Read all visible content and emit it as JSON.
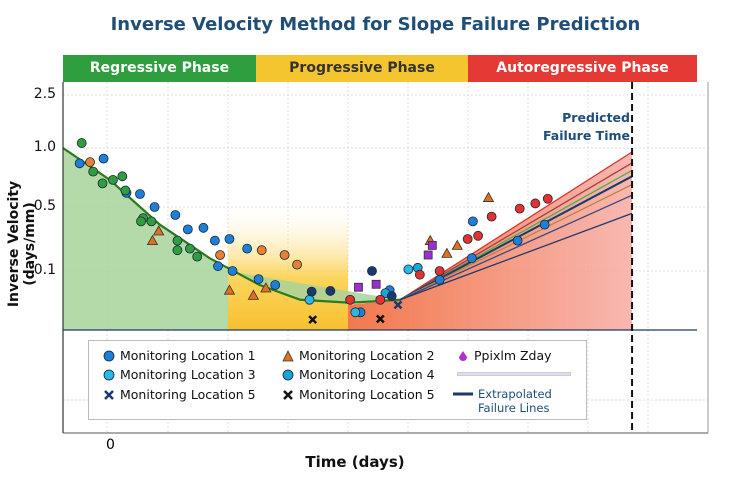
{
  "chart_data": {
    "type": "scatter",
    "title": "Inverse Velocity Method for Slope Failure Prediction",
    "xlabel": "Time (days)",
    "ylabel": "Inverse Velocity (days/mm)",
    "x_tick_labels": [
      "0"
    ],
    "y_ticks": [
      2.5,
      1.0,
      0.5,
      0.1
    ],
    "y_tick_labels": [
      "2.5",
      "1.0",
      "0.5",
      "0.1"
    ],
    "xlim": [
      -4.7,
      57.3
    ],
    "ylim": [
      0.02,
      2.5
    ],
    "grid": true,
    "legend_placement": "bottom",
    "phases": [
      {
        "label": "Regressive Phase",
        "color": "#2e9e3f",
        "text_color": "#ffffff"
      },
      {
        "label": "Progressive Phase",
        "color": "#f5c530",
        "text_color": "#333333"
      },
      {
        "label": "Autoregressive Phase",
        "color": "#e53935",
        "text_color": "#ffffff"
      }
    ],
    "annotation": {
      "line1": "Predicted",
      "line2": "Failure Time",
      "x": 50
    },
    "series": [
      {
        "name": "Monitoring Location 1",
        "marker": "circle",
        "color": "#1e7fd8",
        "points": [
          [
            -3.1,
            0.87
          ],
          [
            -0.8,
            0.91
          ],
          [
            1.4,
            0.62
          ],
          [
            2.7,
            0.61
          ],
          [
            4.1,
            0.5
          ],
          [
            6.1,
            0.45
          ],
          [
            7.3,
            0.36
          ],
          [
            8.8,
            0.37
          ],
          [
            9.9,
            0.29
          ],
          [
            11.3,
            0.3
          ],
          [
            13.0,
            0.24
          ],
          [
            10.2,
            0.13
          ],
          [
            11.6,
            0.1
          ],
          [
            14.1,
            0.089
          ],
          [
            15.7,
            0.081
          ],
          [
            34.7,
            0.41
          ],
          [
            39.0,
            0.29
          ],
          [
            41.6,
            0.39
          ],
          [
            34.6,
            0.18
          ],
          [
            31.5,
            0.088
          ],
          [
            26.7,
            0.074
          ],
          [
            23.9,
            0.044
          ]
        ]
      },
      {
        "name": "Monitoring Location 2",
        "marker": "triangle",
        "color": "#e07020",
        "points": [
          [
            3.9,
            0.29
          ],
          [
            4.5,
            0.35
          ],
          [
            11.3,
            0.074
          ],
          [
            13.6,
            0.067
          ],
          [
            14.8,
            0.077
          ],
          [
            30.6,
            0.29
          ],
          [
            32.2,
            0.21
          ],
          [
            33.2,
            0.26
          ],
          [
            36.2,
            0.58
          ]
        ]
      },
      {
        "name": "Ppixlm Zday",
        "marker": "diamond",
        "color": "#9b30d0",
        "points": [
          [
            23.7,
            0.078
          ],
          [
            25.4,
            0.082
          ],
          [
            30.8,
            0.26
          ],
          [
            30.4,
            0.2
          ]
        ]
      },
      {
        "name": "Monitoring Location 3",
        "marker": "circle",
        "color": "#2ab8e6",
        "points": [
          [
            19.0,
            0.061
          ],
          [
            23.4,
            0.044
          ],
          [
            28.5,
            0.11
          ]
        ]
      },
      {
        "name": "Monitoring Location 4",
        "marker": "circle",
        "color": "#18a6d6",
        "points": [
          [
            29.4,
            0.12
          ],
          [
            26.3,
            0.07
          ]
        ]
      },
      {
        "name": "Monitoring Location 5",
        "marker": "x",
        "color": "#1a3a6e",
        "points": [
          [
            27.5,
            0.054
          ]
        ]
      },
      {
        "name": "Monitoring Location 5",
        "marker": "x",
        "color": "#111111",
        "points": [
          [
            25.8,
            0.035
          ],
          [
            19.3,
            0.034
          ]
        ]
      },
      {
        "marker": "circle",
        "color": "#2e9e3f",
        "points": [
          [
            -2.9,
            1.14
          ],
          [
            -1.8,
            0.8
          ],
          [
            -0.9,
            0.7
          ],
          [
            0.1,
            0.73
          ],
          [
            1.0,
            0.76
          ],
          [
            1.3,
            0.64
          ],
          [
            3.0,
            0.43
          ],
          [
            2.8,
            0.41
          ],
          [
            3.8,
            0.41
          ],
          [
            6.3,
            0.29
          ],
          [
            6.3,
            0.23
          ],
          [
            7.5,
            0.24
          ],
          [
            8.2,
            0.19
          ]
        ]
      },
      {
        "marker": "circle",
        "color": "#e88030",
        "points": [
          [
            -2.1,
            0.88
          ],
          [
            10.4,
            0.2
          ],
          [
            14.4,
            0.23
          ],
          [
            16.6,
            0.2
          ],
          [
            17.8,
            0.14
          ]
        ]
      },
      {
        "marker": "circle",
        "color": "#e53030",
        "points": [
          [
            22.9,
            0.061
          ],
          [
            25.8,
            0.061
          ],
          [
            29.6,
            0.095
          ],
          [
            31.5,
            0.1
          ],
          [
            34.2,
            0.3
          ],
          [
            35.2,
            0.32
          ],
          [
            36.5,
            0.44
          ],
          [
            39.2,
            0.49
          ],
          [
            40.7,
            0.53
          ],
          [
            41.9,
            0.57
          ]
        ]
      },
      {
        "marker": "circle",
        "color": "#1a3a6e",
        "points": [
          [
            19.2,
            0.072
          ],
          [
            21.0,
            0.073
          ],
          [
            25.0,
            0.1
          ],
          [
            26.9,
            0.066
          ]
        ]
      }
    ],
    "fit_curve": {
      "color": "#2a7a1e",
      "points": [
        [
          -4.7,
          1.0
        ],
        [
          -0.2,
          0.73
        ],
        [
          4.6,
          0.39
        ],
        [
          9.4,
          0.18
        ],
        [
          14.2,
          0.081
        ],
        [
          18.1,
          0.061
        ],
        [
          22.9,
          0.057
        ],
        [
          27.7,
          0.061
        ]
      ]
    },
    "extrapolated_lines": {
      "name": "Extrapolated Failure Lines",
      "start": [
        27.7,
        0.061
      ],
      "end_values": [
        0.966,
        0.873,
        0.81,
        0.76,
        0.69,
        0.6,
        0.46
      ],
      "colors": [
        "#d93030",
        "#a04040",
        "#4caf50",
        "#1a3a6e",
        "#c08040",
        "#3a4a80",
        "#1f3a6e"
      ]
    },
    "legend_extra_label_line2": "Failure Lines",
    "legend_extra_label_line1": "Extrapolated"
  }
}
